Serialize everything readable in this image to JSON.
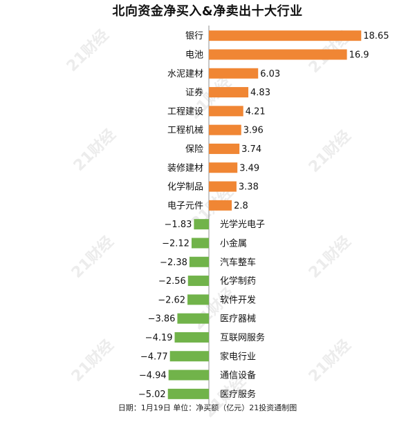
{
  "title": "北向资金净买入&净卖出十大行业",
  "footer": "日期：1月19日 单位：净买额（亿元）21投资通制图",
  "watermark": "21财经",
  "colors": {
    "positive": "#f08634",
    "negative": "#71b34a",
    "axis": "#8f8f8f",
    "text": "#111111"
  },
  "chart_data": {
    "type": "bar",
    "orientation": "horizontal",
    "categories": [
      "银行",
      "电池",
      "水泥建材",
      "证券",
      "工程建设",
      "工程机械",
      "保险",
      "装修建材",
      "化学制品",
      "电子元件",
      "光学光电子",
      "小金属",
      "汽车整车",
      "化学制药",
      "软件开发",
      "医疗器械",
      "互联网服务",
      "家电行业",
      "通信设备",
      "医疗服务"
    ],
    "values": [
      18.65,
      16.9,
      6.03,
      4.83,
      4.21,
      3.96,
      3.74,
      3.49,
      3.38,
      2.8,
      -1.83,
      -2.12,
      -2.38,
      -2.56,
      -2.62,
      -3.86,
      -4.19,
      -4.77,
      -4.94,
      -5.02
    ],
    "value_labels": [
      "18.65",
      "16.9",
      "6.03",
      "4.83",
      "4.21",
      "3.96",
      "3.74",
      "3.49",
      "3.38",
      "2.8",
      "−1.83",
      "−2.12",
      "−2.38",
      "−2.56",
      "−2.62",
      "−3.86",
      "−4.19",
      "−4.77",
      "−4.94",
      "−5.02"
    ],
    "xlabel": "",
    "ylabel": ""
  }
}
